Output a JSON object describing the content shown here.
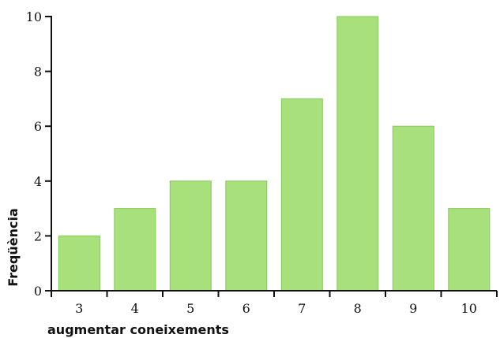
{
  "chart_data": {
    "type": "bar",
    "categories": [
      "3",
      "4",
      "5",
      "6",
      "7",
      "8",
      "9",
      "10"
    ],
    "values": [
      2,
      3,
      4,
      4,
      7,
      10,
      6,
      3
    ],
    "title": "",
    "xlabel": "augmentar coneixements",
    "ylabel": "Freqüència",
    "ylim": [
      0,
      10
    ],
    "yticks": [
      "0",
      "2",
      "4",
      "6",
      "8",
      "10"
    ],
    "grid": false,
    "bar_color": "#a8e07c",
    "axis_color": "#111111"
  }
}
